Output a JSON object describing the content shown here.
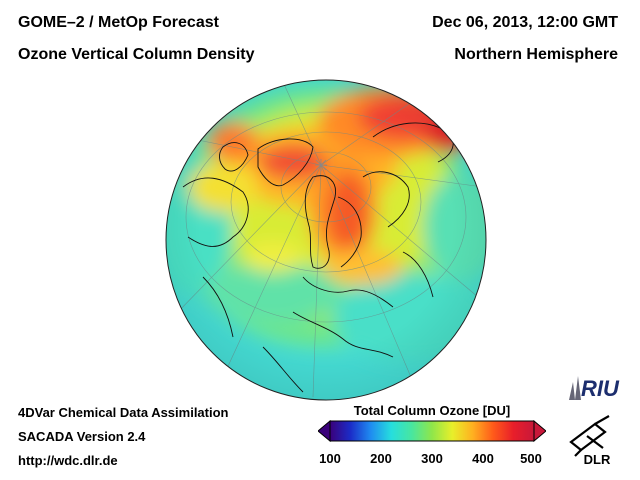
{
  "header": {
    "title_line1": "GOME–2 / MetOp Forecast",
    "title_line2": "Ozone Vertical Column Density",
    "date": "Dec 06, 2013, 12:00 GMT",
    "region": "Northern Hemisphere"
  },
  "footer": {
    "line1": "4DVar Chemical Data Assimilation",
    "line2": "SACADA Version 2.4",
    "line3": "http://wdc.dlr.de"
  },
  "colorbar": {
    "title": "Total Column Ozone [DU]",
    "min": 100,
    "max": 500,
    "ticks": [
      "100",
      "200",
      "300",
      "400",
      "500"
    ],
    "colors": [
      "#3a007a",
      "#1b2cc8",
      "#1f8cf0",
      "#26dede",
      "#48e6a0",
      "#8fe64a",
      "#e8ef2a",
      "#ffb020",
      "#ff5a1a",
      "#e81e2a",
      "#c8183a"
    ]
  },
  "logos": {
    "riu": "RIU",
    "dlr": "DLR"
  },
  "map": {
    "base_color": "#4fe0c0",
    "ocean_tint": "#40dde0"
  }
}
